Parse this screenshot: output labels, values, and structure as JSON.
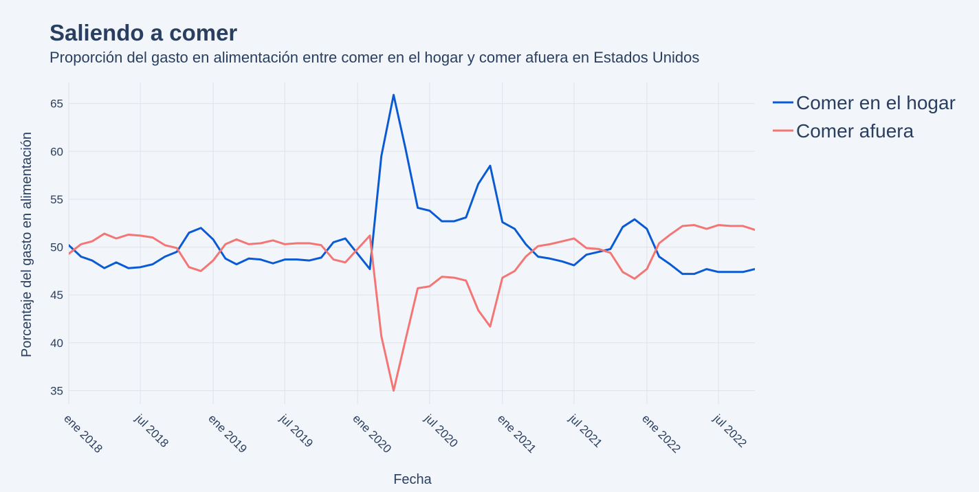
{
  "chart_data": {
    "type": "line",
    "title": "Saliendo a comer",
    "subtitle": "Proporción del gasto en alimentación entre comer en el hogar y comer afuera en Estados Unidos",
    "xlabel": "Fecha",
    "ylabel": "Porcentaje del gasto en alimentación",
    "xlim": [
      "2018-01-01",
      "2022-10-01"
    ],
    "ylim": [
      33.6,
      67.2
    ],
    "y_ticks": [
      35,
      40,
      45,
      50,
      55,
      60,
      65
    ],
    "x_ticks": [
      {
        "date": "2018-01-01",
        "label": "ene 2018"
      },
      {
        "date": "2018-07-01",
        "label": "jul 2018"
      },
      {
        "date": "2019-01-01",
        "label": "ene 2019"
      },
      {
        "date": "2019-07-01",
        "label": "jul 2019"
      },
      {
        "date": "2020-01-01",
        "label": "ene 2020"
      },
      {
        "date": "2020-07-01",
        "label": "jul 2020"
      },
      {
        "date": "2021-01-01",
        "label": "ene 2021"
      },
      {
        "date": "2021-07-01",
        "label": "jul 2021"
      },
      {
        "date": "2022-01-01",
        "label": "ene 2022"
      },
      {
        "date": "2022-07-01",
        "label": "jul 2022"
      }
    ],
    "grid": true,
    "legend_position": "top-right",
    "x": [
      "2018-01-01",
      "2018-02-01",
      "2018-03-01",
      "2018-04-01",
      "2018-05-01",
      "2018-06-01",
      "2018-07-01",
      "2018-08-01",
      "2018-09-01",
      "2018-10-01",
      "2018-11-01",
      "2018-12-01",
      "2019-01-01",
      "2019-02-01",
      "2019-03-01",
      "2019-04-01",
      "2019-05-01",
      "2019-06-01",
      "2019-07-01",
      "2019-08-01",
      "2019-09-01",
      "2019-10-01",
      "2019-11-01",
      "2019-12-01",
      "2020-01-01",
      "2020-02-01",
      "2020-03-01",
      "2020-04-01",
      "2020-05-01",
      "2020-06-01",
      "2020-07-01",
      "2020-08-01",
      "2020-09-01",
      "2020-10-01",
      "2020-11-01",
      "2020-12-01",
      "2021-01-01",
      "2021-02-01",
      "2021-03-01",
      "2021-04-01",
      "2021-05-01",
      "2021-06-01",
      "2021-07-01",
      "2021-08-01",
      "2021-09-01",
      "2021-10-01",
      "2021-11-01",
      "2021-12-01",
      "2022-01-01",
      "2022-02-01",
      "2022-03-01",
      "2022-04-01",
      "2022-05-01",
      "2022-06-01",
      "2022-07-01",
      "2022-08-01",
      "2022-09-01",
      "2022-10-01"
    ],
    "series": [
      {
        "name": "Comer en el hogar",
        "color": "#0a5bd3",
        "values": [
          50.2,
          49.0,
          48.6,
          47.8,
          48.4,
          47.8,
          47.9,
          48.2,
          49.0,
          49.5,
          51.5,
          52.0,
          50.8,
          48.8,
          48.2,
          48.8,
          48.7,
          48.3,
          48.7,
          48.7,
          48.6,
          48.9,
          50.5,
          50.9,
          49.3,
          47.7,
          59.5,
          65.9,
          60.3,
          54.1,
          53.8,
          52.7,
          52.7,
          53.1,
          56.6,
          58.5,
          52.6,
          51.9,
          50.3,
          49.0,
          48.8,
          48.5,
          48.1,
          49.2,
          49.5,
          49.8,
          52.1,
          52.9,
          51.9,
          49.0,
          48.2,
          47.2,
          47.2,
          47.7,
          47.4,
          47.4,
          47.4,
          47.7
        ]
      },
      {
        "name": "Comer afuera",
        "color": "#f47674",
        "values": [
          49.3,
          50.3,
          50.6,
          51.4,
          50.9,
          51.3,
          51.2,
          51.0,
          50.2,
          49.9,
          47.9,
          47.5,
          48.6,
          50.3,
          50.8,
          50.3,
          50.4,
          50.7,
          50.3,
          50.4,
          50.4,
          50.2,
          48.7,
          48.4,
          49.8,
          51.2,
          40.7,
          35.0,
          40.3,
          45.7,
          45.9,
          46.9,
          46.8,
          46.5,
          43.4,
          41.7,
          46.8,
          47.5,
          49.0,
          50.1,
          50.3,
          50.6,
          50.9,
          49.9,
          49.8,
          49.4,
          47.4,
          46.7,
          47.7,
          50.4,
          51.3,
          52.2,
          52.3,
          51.9,
          52.3,
          52.2,
          52.2,
          51.8
        ]
      }
    ]
  }
}
